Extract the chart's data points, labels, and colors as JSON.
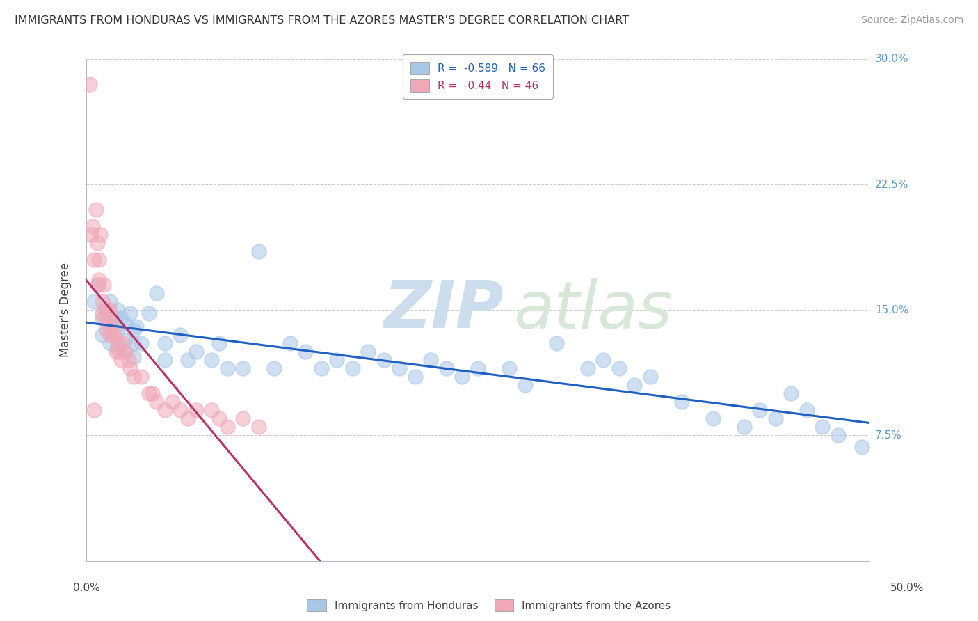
{
  "title": "IMMIGRANTS FROM HONDURAS VS IMMIGRANTS FROM THE AZORES MASTER'S DEGREE CORRELATION CHART",
  "source": "Source: ZipAtlas.com",
  "ylabel": "Master's Degree",
  "legend_blue_label": "Immigrants from Honduras",
  "legend_pink_label": "Immigrants from the Azores",
  "r_blue": -0.589,
  "n_blue": 66,
  "r_pink": -0.44,
  "n_pink": 46,
  "blue_color": "#a8c8e8",
  "pink_color": "#f0a8b8",
  "line_blue_color": "#2060c0",
  "line_pink_color": "#c03060",
  "watermark_zip": "ZIP",
  "watermark_atlas": "atlas",
  "blue_scatter": [
    [
      0.005,
      0.155
    ],
    [
      0.008,
      0.165
    ],
    [
      0.01,
      0.145
    ],
    [
      0.01,
      0.135
    ],
    [
      0.012,
      0.15
    ],
    [
      0.015,
      0.155
    ],
    [
      0.015,
      0.14
    ],
    [
      0.015,
      0.13
    ],
    [
      0.018,
      0.145
    ],
    [
      0.02,
      0.15
    ],
    [
      0.02,
      0.138
    ],
    [
      0.02,
      0.128
    ],
    [
      0.022,
      0.145
    ],
    [
      0.025,
      0.142
    ],
    [
      0.025,
      0.132
    ],
    [
      0.025,
      0.125
    ],
    [
      0.028,
      0.148
    ],
    [
      0.03,
      0.138
    ],
    [
      0.03,
      0.13
    ],
    [
      0.03,
      0.122
    ],
    [
      0.032,
      0.14
    ],
    [
      0.035,
      0.13
    ],
    [
      0.04,
      0.148
    ],
    [
      0.045,
      0.16
    ],
    [
      0.05,
      0.13
    ],
    [
      0.05,
      0.12
    ],
    [
      0.06,
      0.135
    ],
    [
      0.065,
      0.12
    ],
    [
      0.07,
      0.125
    ],
    [
      0.08,
      0.12
    ],
    [
      0.085,
      0.13
    ],
    [
      0.09,
      0.115
    ],
    [
      0.1,
      0.115
    ],
    [
      0.11,
      0.185
    ],
    [
      0.12,
      0.115
    ],
    [
      0.13,
      0.13
    ],
    [
      0.14,
      0.125
    ],
    [
      0.15,
      0.115
    ],
    [
      0.16,
      0.12
    ],
    [
      0.17,
      0.115
    ],
    [
      0.18,
      0.125
    ],
    [
      0.19,
      0.12
    ],
    [
      0.2,
      0.115
    ],
    [
      0.21,
      0.11
    ],
    [
      0.22,
      0.12
    ],
    [
      0.23,
      0.115
    ],
    [
      0.24,
      0.11
    ],
    [
      0.25,
      0.115
    ],
    [
      0.27,
      0.115
    ],
    [
      0.28,
      0.105
    ],
    [
      0.3,
      0.13
    ],
    [
      0.32,
      0.115
    ],
    [
      0.33,
      0.12
    ],
    [
      0.34,
      0.115
    ],
    [
      0.35,
      0.105
    ],
    [
      0.36,
      0.11
    ],
    [
      0.38,
      0.095
    ],
    [
      0.4,
      0.085
    ],
    [
      0.42,
      0.08
    ],
    [
      0.43,
      0.09
    ],
    [
      0.44,
      0.085
    ],
    [
      0.45,
      0.1
    ],
    [
      0.46,
      0.09
    ],
    [
      0.47,
      0.08
    ],
    [
      0.48,
      0.075
    ],
    [
      0.495,
      0.068
    ]
  ],
  "pink_scatter": [
    [
      0.002,
      0.285
    ],
    [
      0.003,
      0.195
    ],
    [
      0.004,
      0.2
    ],
    [
      0.005,
      0.18
    ],
    [
      0.006,
      0.21
    ],
    [
      0.007,
      0.19
    ],
    [
      0.007,
      0.165
    ],
    [
      0.008,
      0.18
    ],
    [
      0.008,
      0.168
    ],
    [
      0.009,
      0.195
    ],
    [
      0.01,
      0.155
    ],
    [
      0.01,
      0.148
    ],
    [
      0.011,
      0.165
    ],
    [
      0.012,
      0.145
    ],
    [
      0.013,
      0.15
    ],
    [
      0.013,
      0.138
    ],
    [
      0.014,
      0.145
    ],
    [
      0.015,
      0.135
    ],
    [
      0.015,
      0.15
    ],
    [
      0.016,
      0.14
    ],
    [
      0.017,
      0.135
    ],
    [
      0.018,
      0.135
    ],
    [
      0.019,
      0.125
    ],
    [
      0.02,
      0.13
    ],
    [
      0.021,
      0.125
    ],
    [
      0.022,
      0.12
    ],
    [
      0.023,
      0.13
    ],
    [
      0.025,
      0.125
    ],
    [
      0.027,
      0.12
    ],
    [
      0.028,
      0.115
    ],
    [
      0.03,
      0.11
    ],
    [
      0.035,
      0.11
    ],
    [
      0.04,
      0.1
    ],
    [
      0.042,
      0.1
    ],
    [
      0.045,
      0.095
    ],
    [
      0.05,
      0.09
    ],
    [
      0.055,
      0.095
    ],
    [
      0.06,
      0.09
    ],
    [
      0.065,
      0.085
    ],
    [
      0.07,
      0.09
    ],
    [
      0.08,
      0.09
    ],
    [
      0.085,
      0.085
    ],
    [
      0.09,
      0.08
    ],
    [
      0.1,
      0.085
    ],
    [
      0.11,
      0.08
    ],
    [
      0.005,
      0.09
    ]
  ],
  "xlim": [
    0.0,
    0.5
  ],
  "ylim": [
    0.0,
    0.3
  ],
  "ytick_vals": [
    0.0,
    0.075,
    0.15,
    0.225,
    0.3
  ],
  "right_ytick_vals": [
    0.3,
    0.225,
    0.15,
    0.075
  ],
  "right_ytick_labels": [
    "30.0%",
    "22.5%",
    "15.0%",
    "7.5%"
  ],
  "background_color": "#ffffff",
  "grid_color": "#cccccc"
}
